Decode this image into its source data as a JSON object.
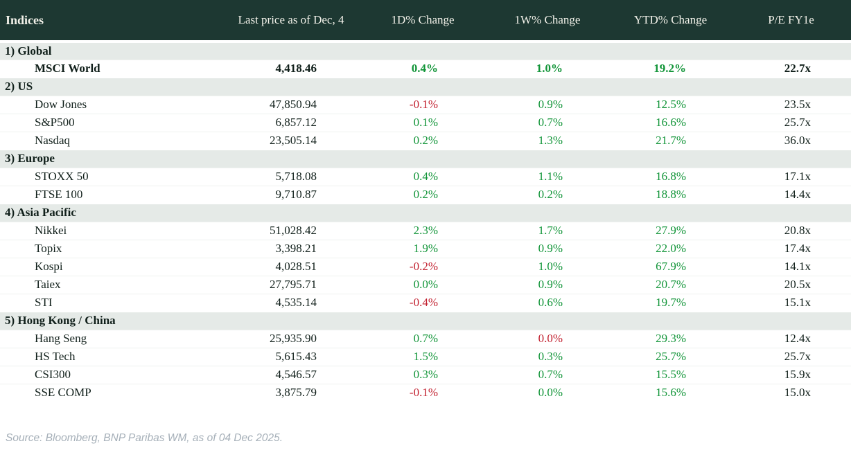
{
  "table": {
    "headers": [
      "Indices",
      "Last price as of Dec, 4",
      "1D% Change",
      "1W% Change",
      "YTD% Change",
      "P/E FY1e"
    ],
    "sections": [
      {
        "label": "1) Global",
        "rows": [
          {
            "name": "MSCI World",
            "price": "4,418.46",
            "d1": "0.4%",
            "d1_dir": "pos",
            "w1": "1.0%",
            "w1_dir": "pos",
            "ytd": "19.2%",
            "ytd_dir": "pos",
            "pe": "22.7x",
            "highlight": true
          }
        ]
      },
      {
        "label": "2) US",
        "rows": [
          {
            "name": "Dow Jones",
            "price": "47,850.94",
            "d1": "-0.1%",
            "d1_dir": "neg",
            "w1": "0.9%",
            "w1_dir": "pos",
            "ytd": "12.5%",
            "ytd_dir": "pos",
            "pe": "23.5x",
            "highlight": false
          },
          {
            "name": "S&P500",
            "price": "6,857.12",
            "d1": "0.1%",
            "d1_dir": "pos",
            "w1": "0.7%",
            "w1_dir": "pos",
            "ytd": "16.6%",
            "ytd_dir": "pos",
            "pe": "25.7x",
            "highlight": false
          },
          {
            "name": "Nasdaq",
            "price": "23,505.14",
            "d1": "0.2%",
            "d1_dir": "pos",
            "w1": "1.3%",
            "w1_dir": "pos",
            "ytd": "21.7%",
            "ytd_dir": "pos",
            "pe": "36.0x",
            "highlight": false
          }
        ]
      },
      {
        "label": "3) Europe",
        "rows": [
          {
            "name": "STOXX 50",
            "price": "5,718.08",
            "d1": "0.4%",
            "d1_dir": "pos",
            "w1": "1.1%",
            "w1_dir": "pos",
            "ytd": "16.8%",
            "ytd_dir": "pos",
            "pe": "17.1x",
            "highlight": false
          },
          {
            "name": "FTSE 100",
            "price": "9,710.87",
            "d1": "0.2%",
            "d1_dir": "pos",
            "w1": "0.2%",
            "w1_dir": "pos",
            "ytd": "18.8%",
            "ytd_dir": "pos",
            "pe": "14.4x",
            "highlight": false
          }
        ]
      },
      {
        "label": "4) Asia Pacific",
        "rows": [
          {
            "name": "Nikkei",
            "price": "51,028.42",
            "d1": "2.3%",
            "d1_dir": "pos",
            "w1": "1.7%",
            "w1_dir": "pos",
            "ytd": "27.9%",
            "ytd_dir": "pos",
            "pe": "20.8x",
            "highlight": false
          },
          {
            "name": "Topix",
            "price": "3,398.21",
            "d1": "1.9%",
            "d1_dir": "pos",
            "w1": "0.9%",
            "w1_dir": "pos",
            "ytd": "22.0%",
            "ytd_dir": "pos",
            "pe": "17.4x",
            "highlight": false
          },
          {
            "name": "Kospi",
            "price": "4,028.51",
            "d1": "-0.2%",
            "d1_dir": "neg",
            "w1": "1.0%",
            "w1_dir": "pos",
            "ytd": "67.9%",
            "ytd_dir": "pos",
            "pe": "14.1x",
            "highlight": false
          },
          {
            "name": "Taiex",
            "price": "27,795.71",
            "d1": "0.0%",
            "d1_dir": "pos",
            "w1": "0.9%",
            "w1_dir": "pos",
            "ytd": "20.7%",
            "ytd_dir": "pos",
            "pe": "20.5x",
            "highlight": false
          },
          {
            "name": "STI",
            "price": "4,535.14",
            "d1": "-0.4%",
            "d1_dir": "neg",
            "w1": "0.6%",
            "w1_dir": "pos",
            "ytd": "19.7%",
            "ytd_dir": "pos",
            "pe": "15.1x",
            "highlight": false
          }
        ]
      },
      {
        "label": "5) Hong Kong / China",
        "rows": [
          {
            "name": "Hang Seng",
            "price": "25,935.90",
            "d1": "0.7%",
            "d1_dir": "pos",
            "w1": "0.0%",
            "w1_dir": "neg",
            "ytd": "29.3%",
            "ytd_dir": "pos",
            "pe": "12.4x",
            "highlight": false
          },
          {
            "name": "HS Tech",
            "price": "5,615.43",
            "d1": "1.5%",
            "d1_dir": "pos",
            "w1": "0.3%",
            "w1_dir": "pos",
            "ytd": "25.7%",
            "ytd_dir": "pos",
            "pe": "25.7x",
            "highlight": false
          },
          {
            "name": "CSI300",
            "price": "4,546.57",
            "d1": "0.3%",
            "d1_dir": "pos",
            "w1": "0.7%",
            "w1_dir": "pos",
            "ytd": "15.5%",
            "ytd_dir": "pos",
            "pe": "15.9x",
            "highlight": false
          },
          {
            "name": "SSE COMP",
            "price": "3,875.79",
            "d1": "-0.1%",
            "d1_dir": "neg",
            "w1": "0.0%",
            "w1_dir": "pos",
            "ytd": "15.6%",
            "ytd_dir": "pos",
            "pe": "15.0x",
            "highlight": false
          }
        ]
      }
    ]
  },
  "source": "Source: Bloomberg, BNP Paribas WM, as of 04 Dec 2025.",
  "colors": {
    "header_bg": "#1d3832",
    "header_text": "#f3f2ea",
    "section_bg": "#e5eae7",
    "positive": "#109437",
    "negative": "#c2202f",
    "source_text": "#a5afb8"
  },
  "chart_data": {
    "type": "table",
    "title": "Indices",
    "columns": [
      "Indices",
      "Last price as of Dec, 4",
      "1D% Change",
      "1W% Change",
      "YTD% Change",
      "P/E FY1e"
    ],
    "groups": [
      {
        "group": "1) Global",
        "rows": [
          [
            "MSCI World",
            4418.46,
            0.4,
            1.0,
            19.2,
            22.7
          ]
        ]
      },
      {
        "group": "2) US",
        "rows": [
          [
            "Dow Jones",
            47850.94,
            -0.1,
            0.9,
            12.5,
            23.5
          ],
          [
            "S&P500",
            6857.12,
            0.1,
            0.7,
            16.6,
            25.7
          ],
          [
            "Nasdaq",
            23505.14,
            0.2,
            1.3,
            21.7,
            36.0
          ]
        ]
      },
      {
        "group": "3) Europe",
        "rows": [
          [
            "STOXX 50",
            5718.08,
            0.4,
            1.1,
            16.8,
            17.1
          ],
          [
            "FTSE 100",
            9710.87,
            0.2,
            0.2,
            18.8,
            14.4
          ]
        ]
      },
      {
        "group": "4) Asia Pacific",
        "rows": [
          [
            "Nikkei",
            51028.42,
            2.3,
            1.7,
            27.9,
            20.8
          ],
          [
            "Topix",
            3398.21,
            1.9,
            0.9,
            22.0,
            17.4
          ],
          [
            "Kospi",
            4028.51,
            -0.2,
            1.0,
            67.9,
            14.1
          ],
          [
            "Taiex",
            27795.71,
            0.0,
            0.9,
            20.7,
            20.5
          ],
          [
            "STI",
            4535.14,
            -0.4,
            0.6,
            19.7,
            15.1
          ]
        ]
      },
      {
        "group": "5) Hong Kong / China",
        "rows": [
          [
            "Hang Seng",
            25935.9,
            0.7,
            0.0,
            29.3,
            12.4
          ],
          [
            "HS Tech",
            5615.43,
            1.5,
            0.3,
            25.7,
            25.7
          ],
          [
            "CSI300",
            4546.57,
            0.3,
            0.7,
            15.5,
            15.9
          ],
          [
            "SSE COMP",
            3875.79,
            -0.1,
            0.0,
            15.6,
            15.0
          ]
        ]
      }
    ],
    "footnote": "Source: Bloomberg, BNP Paribas WM, as of 04 Dec 2025."
  }
}
